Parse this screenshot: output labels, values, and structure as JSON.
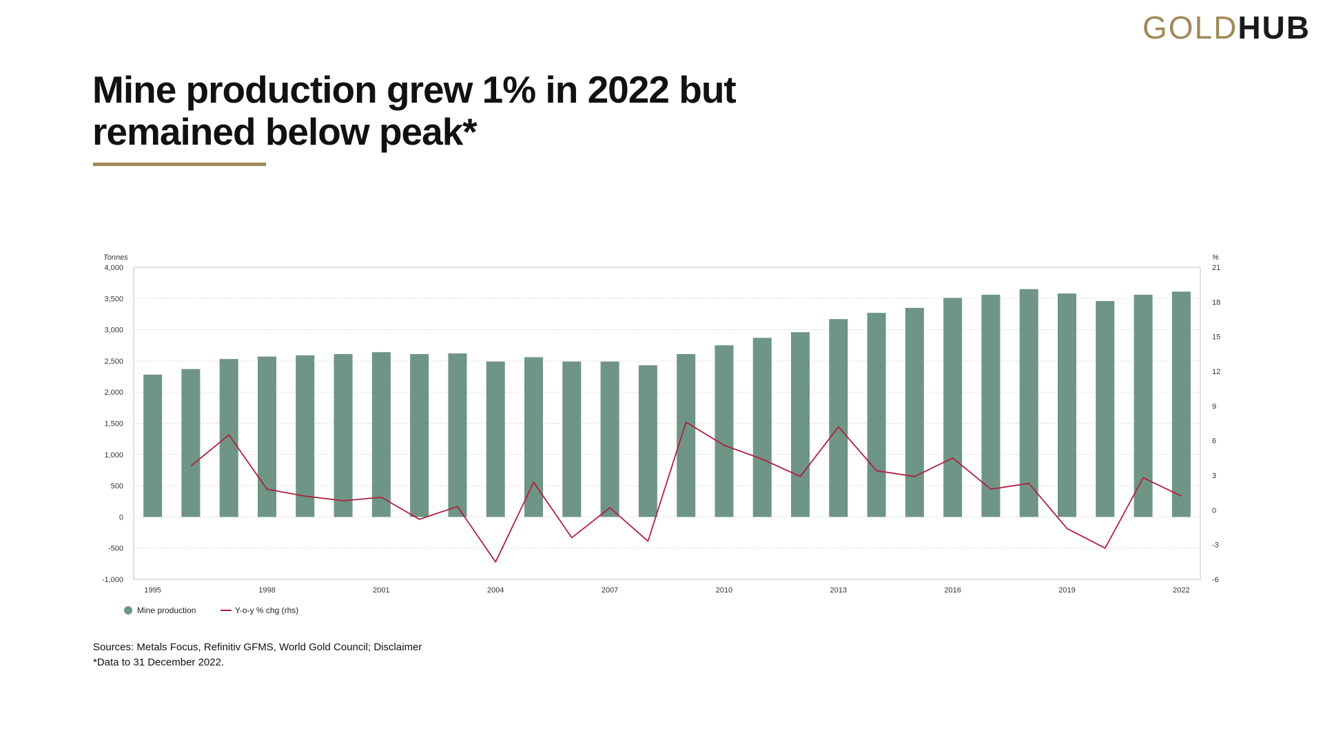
{
  "logo": {
    "part1": "GOLD",
    "part2": "HUB"
  },
  "title": "Mine production grew 1% in 2022 but remained below peak*",
  "sources": {
    "line1": "Sources: Metals Focus, Refinitiv GFMS, World Gold Council; Disclaimer",
    "line2": "*Data to 31 December 2022."
  },
  "colors": {
    "accent": "#A08A5A",
    "bars": "#6E9585",
    "line": "#B0203F"
  },
  "chart_data": {
    "type": "bar",
    "x": [
      1995,
      1996,
      1997,
      1998,
      1999,
      2000,
      2001,
      2002,
      2003,
      2004,
      2005,
      2006,
      2007,
      2008,
      2009,
      2010,
      2011,
      2012,
      2013,
      2014,
      2015,
      2016,
      2017,
      2018,
      2019,
      2020,
      2021,
      2022
    ],
    "series": [
      {
        "name": "Mine production",
        "type": "bar",
        "axis": "left",
        "values": [
          2280,
          2370,
          2530,
          2570,
          2590,
          2610,
          2640,
          2610,
          2620,
          2490,
          2560,
          2490,
          2490,
          2430,
          2610,
          2750,
          2870,
          2960,
          3170,
          3270,
          3350,
          3510,
          3560,
          3650,
          3580,
          3460,
          3560,
          3610
        ]
      },
      {
        "name": "Y-o-y % chg (rhs)",
        "type": "line",
        "axis": "right",
        "values": [
          null,
          3.8,
          6.5,
          1.8,
          1.2,
          0.8,
          1.1,
          -0.8,
          0.3,
          -4.5,
          2.4,
          -2.4,
          0.2,
          -2.7,
          7.6,
          5.6,
          4.4,
          2.9,
          7.2,
          3.4,
          2.9,
          4.5,
          1.8,
          2.3,
          -1.6,
          -3.3,
          2.8,
          1.2
        ]
      }
    ],
    "x_tick_labels": [
      "1995",
      "1998",
      "2001",
      "2004",
      "2007",
      "2010",
      "2013",
      "2016",
      "2019",
      "2022"
    ],
    "y_left": {
      "unit": "Tonnes",
      "range": [
        -1000,
        4000
      ],
      "ticks": [
        -1000,
        -500,
        0,
        500,
        1000,
        1500,
        2000,
        2500,
        3000,
        3500,
        4000
      ],
      "tick_labels": [
        "-1,000",
        "-500",
        "0",
        "500",
        "1,000",
        "1,500",
        "2,000",
        "2,500",
        "3,000",
        "3,500",
        "4,000"
      ]
    },
    "y_right": {
      "unit": "%",
      "range": [
        -6,
        21
      ],
      "ticks": [
        -6,
        -3,
        0,
        3,
        6,
        9,
        12,
        15,
        18,
        21
      ],
      "tick_labels": [
        "-6",
        "-3",
        "0",
        "3",
        "6",
        "9",
        "12",
        "15",
        "18",
        "21"
      ]
    },
    "grid": true,
    "legend_position": "bottom-left"
  }
}
